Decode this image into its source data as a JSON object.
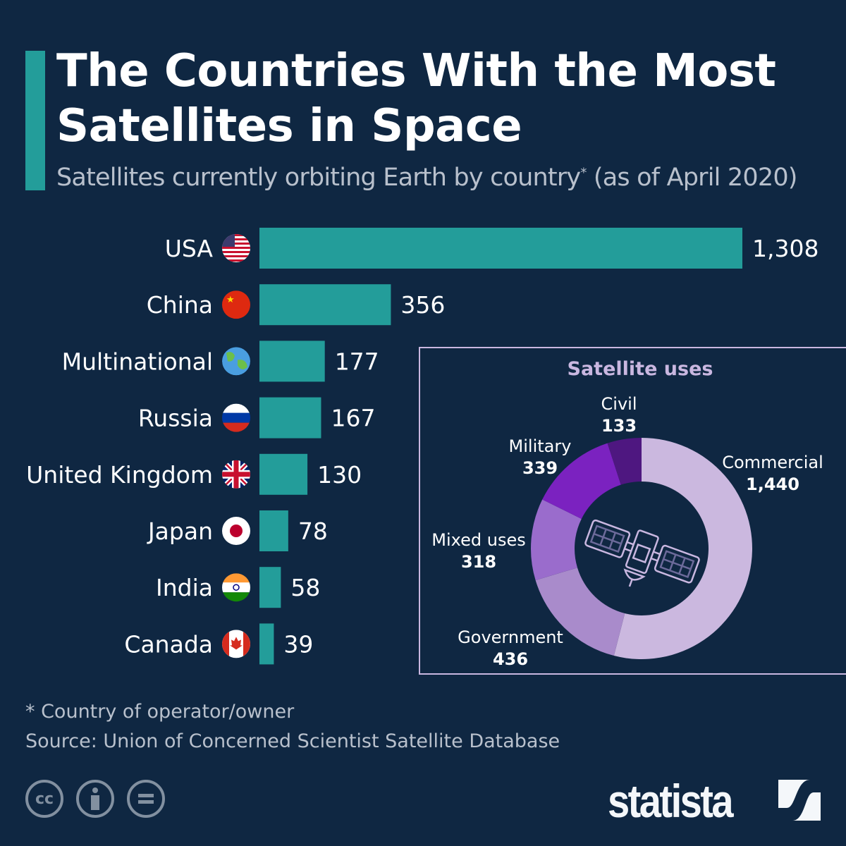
{
  "title": "The Countries With the Most Satellites in Space",
  "title_line1": "The Countries With the Most",
  "title_line2": "Satellites in Space",
  "subtitle": "Satellites currently orbiting Earth by country",
  "subtitle_mark": "*",
  "subtitle_tail": " (as of April 2020)",
  "colors": {
    "background": "#0f2742",
    "bar": "#239d9a",
    "donut_title": "#c9b7e0"
  },
  "chart_data": [
    {
      "type": "bar",
      "orientation": "horizontal",
      "categories": [
        "USA",
        "China",
        "Multinational",
        "Russia",
        "United Kingdom",
        "Japan",
        "India",
        "Canada"
      ],
      "flags": [
        "us-flag-icon",
        "china-flag-icon",
        "globe-icon",
        "russia-flag-icon",
        "uk-flag-icon",
        "japan-flag-icon",
        "india-flag-icon",
        "canada-flag-icon"
      ],
      "values": [
        1308,
        356,
        177,
        167,
        130,
        78,
        58,
        39
      ],
      "value_labels": [
        "1,308",
        "356",
        "177",
        "167",
        "130",
        "78",
        "58",
        "39"
      ],
      "grid": false
    },
    {
      "type": "pie",
      "donut": true,
      "title": "Satellite uses",
      "categories": [
        "Commercial",
        "Government",
        "Mixed uses",
        "Military",
        "Civil"
      ],
      "values": [
        1440,
        436,
        318,
        339,
        133
      ],
      "value_labels": [
        "1,440",
        "436",
        "318",
        "339",
        "133"
      ],
      "colors": [
        "#cbb8df",
        "#a98bcb",
        "#9a6ccc",
        "#7b22c0",
        "#4e1780"
      ],
      "center_icon": "satellite-icon"
    }
  ],
  "footnote": "* Country of operator/owner",
  "source": "Source: Union of Concerned Scientist Satellite Database",
  "license_icons": [
    "cc-icon",
    "attribution-icon",
    "no-derivatives-icon"
  ],
  "brand": "statista"
}
